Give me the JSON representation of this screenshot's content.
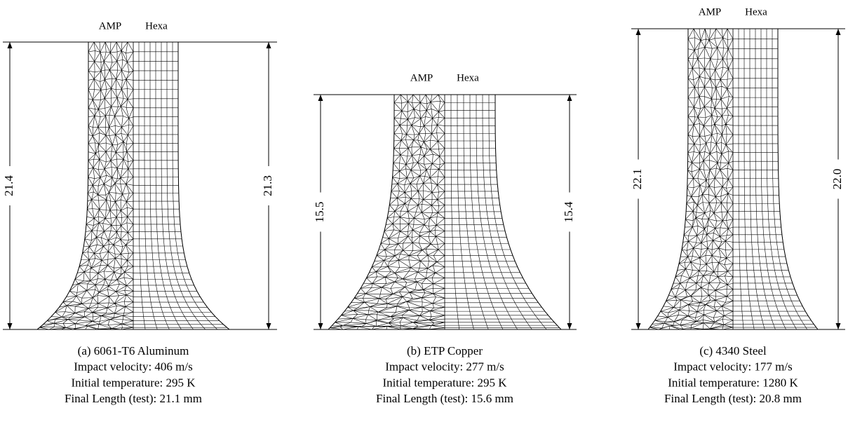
{
  "panels": [
    {
      "labels": {
        "left": "AMP",
        "right": "Hexa"
      },
      "dimensions": {
        "left": "21.4",
        "right": "21.3"
      },
      "caption": [
        "(a)  6061-T6 Aluminum",
        "Impact velocity: 406 m/s",
        "Initial temperature: 295 K",
        "Final Length (test): 21.1 mm"
      ]
    },
    {
      "labels": {
        "left": "AMP",
        "right": "Hexa"
      },
      "dimensions": {
        "left": "15.5",
        "right": "15.4"
      },
      "caption": [
        "(b)  ETP Copper",
        "Impact velocity: 277 m/s",
        "Initial temperature: 295 K",
        "Final Length (test): 15.6 mm"
      ]
    },
    {
      "labels": {
        "left": "AMP",
        "right": "Hexa"
      },
      "dimensions": {
        "left": "22.1",
        "right": "22.0"
      },
      "caption": [
        "(c)  4340 Steel",
        "Impact velocity: 177 m/s",
        "Initial temperature: 1280 K",
        "Final Length (test): 20.8 mm"
      ]
    }
  ]
}
